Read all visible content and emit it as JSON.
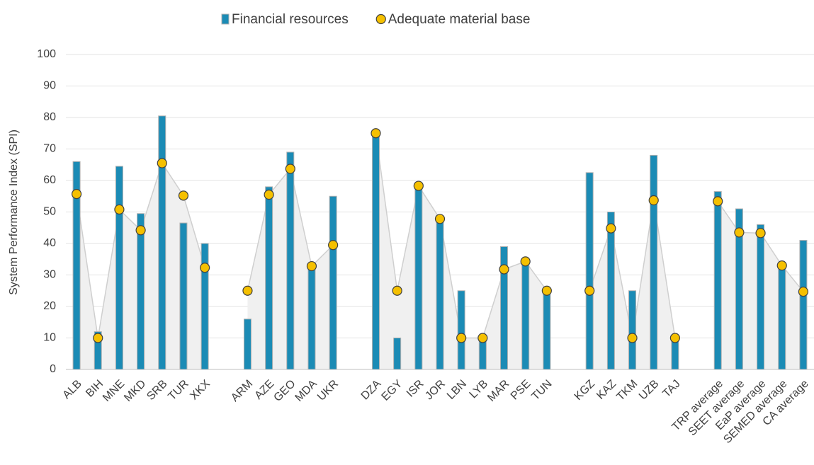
{
  "chart_data": {
    "type": "bar",
    "ylabel": "System Performance Index (SPI)",
    "categories": [
      "ALB",
      "BIH",
      "MNE",
      "MKD",
      "SRB",
      "TUR",
      "XKX",
      null,
      "ARM",
      "AZE",
      "GEO",
      "MDA",
      "UKR",
      null,
      "DZA",
      "EGY",
      "ISR",
      "JOR",
      "LBN",
      "LYB",
      "MAR",
      "PSE",
      "TUN",
      null,
      "KGZ",
      "KAZ",
      "TKM",
      "UZB",
      "TAJ",
      null,
      "TRP average",
      "SEET average",
      "EaP average",
      "SEMED average",
      "CA average"
    ],
    "series": [
      {
        "name": "Financial resources",
        "color": "#1b8bb5",
        "type": "bar",
        "values": [
          66,
          12,
          64.5,
          49.5,
          80.5,
          46.5,
          40,
          null,
          16,
          58,
          69,
          33,
          55,
          null,
          75,
          10,
          58,
          48,
          25,
          10,
          39,
          35,
          25,
          null,
          62.5,
          50,
          25,
          68,
          10,
          null,
          56.5,
          51,
          46,
          33,
          41
        ]
      },
      {
        "name": "Adequate material base",
        "color": "#f5c000",
        "type": "scatter",
        "values": [
          55.7,
          10,
          50.8,
          44.2,
          65.5,
          55.2,
          32.3,
          null,
          25,
          55.5,
          63.7,
          32.8,
          39.5,
          null,
          75,
          25,
          58.3,
          47.8,
          10,
          10,
          31.8,
          34.3,
          25,
          null,
          25,
          44.8,
          10,
          53.7,
          10,
          null,
          53.4,
          43.5,
          43.3,
          33,
          24.7
        ]
      }
    ],
    "ylim": [
      0,
      100
    ],
    "yticks": [
      0,
      10,
      20,
      30,
      40,
      50,
      60,
      70,
      80,
      90,
      100
    ],
    "grid": true,
    "legend": "top"
  }
}
